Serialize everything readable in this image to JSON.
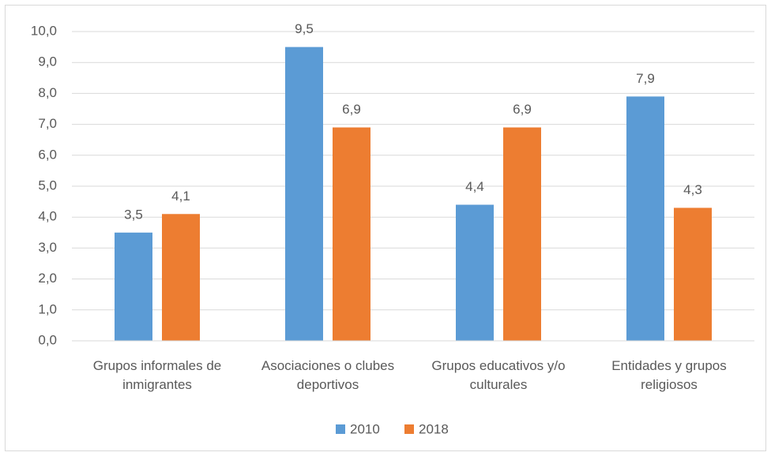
{
  "chart_data": {
    "type": "bar",
    "categories": [
      "Grupos informales de inmigrantes",
      "Asociaciones o clubes deportivos",
      "Grupos educativos y/o culturales",
      "Entidades y grupos religiosos"
    ],
    "series": [
      {
        "name": "2010",
        "color": "#5b9bd5",
        "values": [
          3.5,
          9.5,
          4.4,
          7.9
        ],
        "value_labels": [
          "3,5",
          "9,5",
          "4,4",
          "7,9"
        ]
      },
      {
        "name": "2018",
        "color": "#ed7d31",
        "values": [
          4.1,
          6.9,
          6.9,
          4.3
        ],
        "value_labels": [
          "4,1",
          "6,9",
          "6,9",
          "4,3"
        ]
      }
    ],
    "ylim": [
      0,
      10
    ],
    "yticks": [
      {
        "value": 0,
        "label": "0,0"
      },
      {
        "value": 1,
        "label": "1,0"
      },
      {
        "value": 2,
        "label": "2,0"
      },
      {
        "value": 3,
        "label": "3,0"
      },
      {
        "value": 4,
        "label": "4,0"
      },
      {
        "value": 5,
        "label": "5,0"
      },
      {
        "value": 6,
        "label": "6,0"
      },
      {
        "value": 7,
        "label": "7,0"
      },
      {
        "value": 8,
        "label": "8,0"
      },
      {
        "value": 9,
        "label": "9,0"
      },
      {
        "value": 10,
        "label": "10,0"
      }
    ],
    "grid": true,
    "legend": "bottom"
  }
}
